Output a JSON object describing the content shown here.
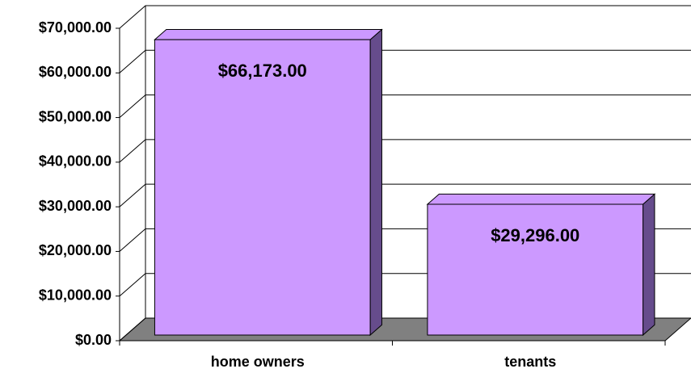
{
  "chart_data": {
    "type": "bar3d",
    "categories": [
      "home owners",
      "tenants"
    ],
    "values": [
      66173,
      29296
    ],
    "value_labels": [
      "$66,173.00",
      "$29,296.00"
    ],
    "color": "#cc99ff",
    "ylim": [
      0,
      70000
    ],
    "yticks": [
      {
        "value": 0,
        "label": "$0.00"
      },
      {
        "value": 10000,
        "label": "$10,000.00"
      },
      {
        "value": 20000,
        "label": "$20,000.00"
      },
      {
        "value": 30000,
        "label": "$30,000.00"
      },
      {
        "value": 40000,
        "label": "$40,000.00"
      },
      {
        "value": 50000,
        "label": "$50,000.00"
      },
      {
        "value": 60000,
        "label": "$60,000.00"
      },
      {
        "value": 70000,
        "label": "$70,000.00"
      }
    ],
    "grid": true
  }
}
